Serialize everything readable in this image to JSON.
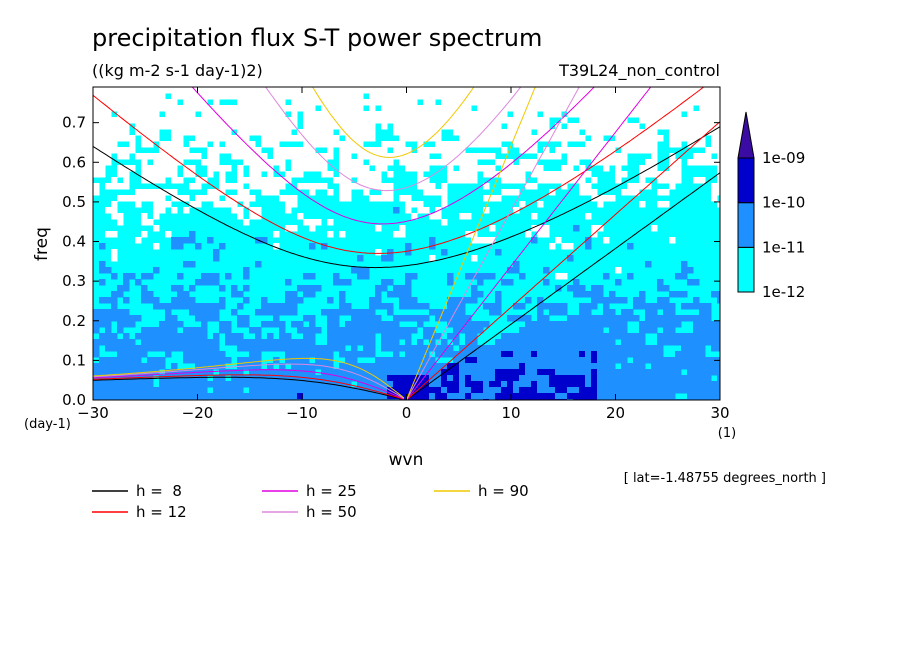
{
  "chart_data": {
    "type": "heatmap",
    "title": "precipitation flux S-T power spectrum",
    "subtitle": "((kg m-2 s-1 day-1)2)",
    "experiment": "T39L24_non_control",
    "xlabel": "wvn",
    "ylabel": "freq",
    "x_unit": "(1)",
    "y_unit": "(day-1)",
    "xlim": [
      -30,
      30
    ],
    "ylim": [
      0,
      0.79
    ],
    "x_ticks": [
      -30,
      -20,
      -10,
      0,
      10,
      20,
      30
    ],
    "x_tick_labels": [
      "-30",
      "-20",
      "-10",
      "0",
      "10",
      "20",
      "30"
    ],
    "y_ticks": [
      0,
      0.1,
      0.2,
      0.3,
      0.4,
      0.5,
      0.6,
      0.7
    ],
    "y_tick_labels": [
      "0.0",
      "0.1",
      "0.2",
      "0.3",
      "0.4",
      "0.5",
      "0.6",
      "0.7"
    ],
    "annotation": "[ lat=-1.48755 degrees_north ]",
    "color_levels": {
      "labels": [
        "1e-12",
        "1e-11",
        "1e-10",
        "1e-09"
      ],
      "colors": [
        "#00ffff",
        "#1e90ff",
        "#0000cd",
        "#3a0ca3"
      ],
      "above_color": "#3a0ca3"
    },
    "dispersion_curves": [
      {
        "label": "h =  8",
        "h": 8,
        "color": "#000000"
      },
      {
        "label": "h = 12",
        "h": 12,
        "color": "#ff0000"
      },
      {
        "label": "h = 25",
        "h": 25,
        "color": "#e000e0"
      },
      {
        "label": "h = 50",
        "h": 50,
        "color": "#dd88dd"
      },
      {
        "label": "h = 90",
        "h": 90,
        "color": "#f0c800"
      }
    ]
  }
}
